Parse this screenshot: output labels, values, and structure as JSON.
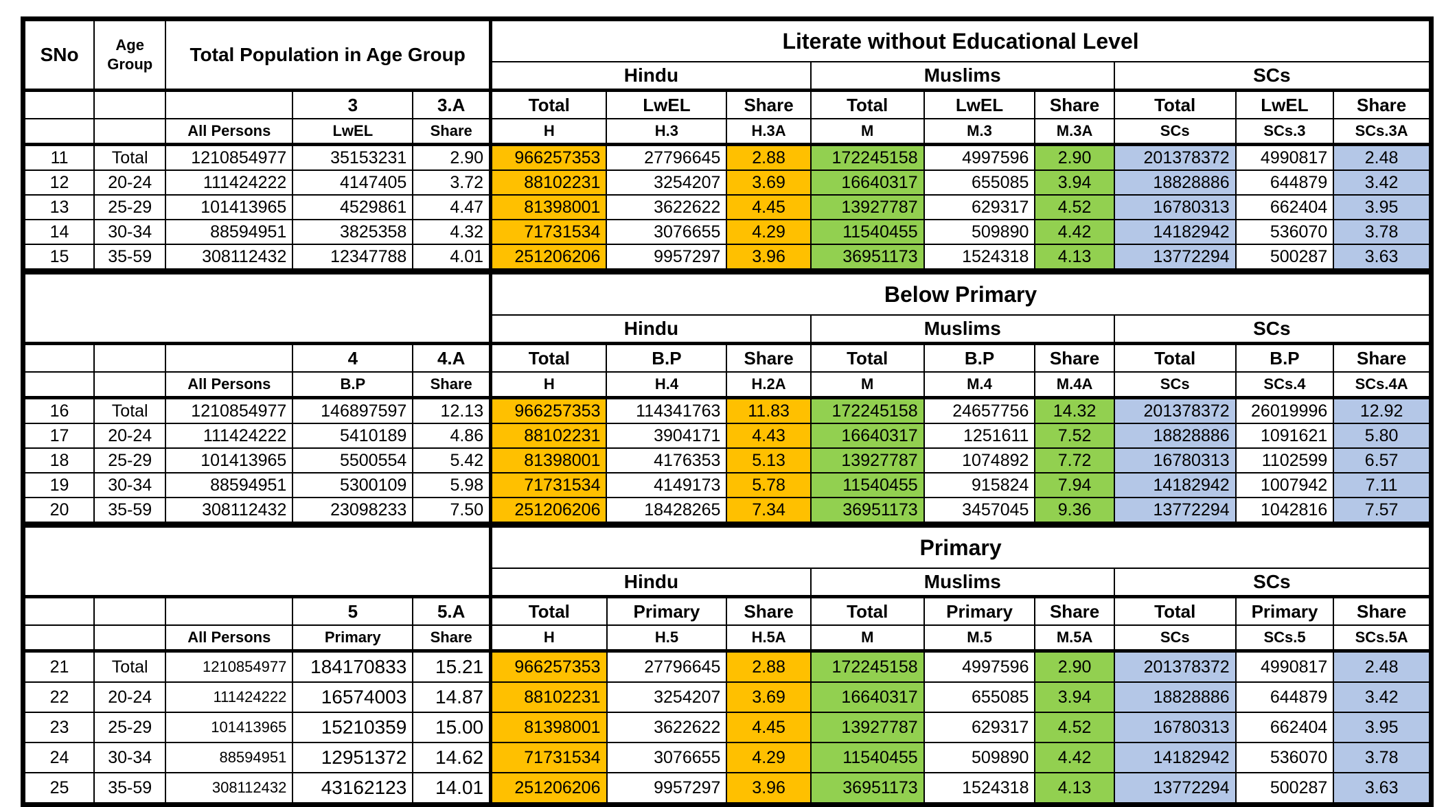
{
  "colors": {
    "hindu_highlight": "#FFC000",
    "muslim_highlight": "#92D050",
    "sc_highlight": "#B4C7E7"
  },
  "top_header": {
    "sno": "SNo",
    "age_group": "Age Group",
    "total_population": "Total Population in Age Group"
  },
  "group_names": {
    "hindu": "Hindu",
    "muslims": "Muslims",
    "scs": "SCs"
  },
  "sections": [
    {
      "title": "Literate without Educational Level",
      "left_num_header": [
        "3",
        "3.A"
      ],
      "left_sub_header": [
        "All Persons",
        "LwEL",
        "Share"
      ],
      "group_col_headers": {
        "hindu": [
          "Total",
          "LwEL",
          "Share"
        ],
        "muslims": [
          "Total",
          "LwEL",
          "Share"
        ],
        "scs": [
          "Total",
          "LwEL",
          "Share"
        ]
      },
      "group_sub_headers": {
        "hindu": [
          "H",
          "H.3",
          "H.3A"
        ],
        "muslims": [
          "M",
          "M.3",
          "M.3A"
        ],
        "scs": [
          "SCs",
          "SCs.3",
          "SCs.3A"
        ]
      },
      "rows": [
        [
          "11",
          "Total",
          "1210854977",
          "35153231",
          "2.90",
          "966257353",
          "27796645",
          "2.88",
          "172245158",
          "4997596",
          "2.90",
          "201378372",
          "4990817",
          "2.48"
        ],
        [
          "12",
          "20-24",
          "111424222",
          "4147405",
          "3.72",
          "88102231",
          "3254207",
          "3.69",
          "16640317",
          "655085",
          "3.94",
          "18828886",
          "644879",
          "3.42"
        ],
        [
          "13",
          "25-29",
          "101413965",
          "4529861",
          "4.47",
          "81398001",
          "3622622",
          "4.45",
          "13927787",
          "629317",
          "4.52",
          "16780313",
          "662404",
          "3.95"
        ],
        [
          "14",
          "30-34",
          "88594951",
          "3825358",
          "4.32",
          "71731534",
          "3076655",
          "4.29",
          "11540455",
          "509890",
          "4.42",
          "14182942",
          "536070",
          "3.78"
        ],
        [
          "15",
          "35-59",
          "308112432",
          "12347788",
          "4.01",
          "251206206",
          "9957297",
          "3.96",
          "36951173",
          "1524318",
          "4.13",
          "13772294",
          "500287",
          "3.63"
        ]
      ]
    },
    {
      "title": "Below Primary",
      "left_num_header": [
        "4",
        "4.A"
      ],
      "left_sub_header": [
        "All Persons",
        "B.P",
        "Share"
      ],
      "group_col_headers": {
        "hindu": [
          "Total",
          "B.P",
          "Share"
        ],
        "muslims": [
          "Total",
          "B.P",
          "Share"
        ],
        "scs": [
          "Total",
          "B.P",
          "Share"
        ]
      },
      "group_sub_headers": {
        "hindu": [
          "H",
          "H.4",
          "H.2A"
        ],
        "muslims": [
          "M",
          "M.4",
          "M.4A"
        ],
        "scs": [
          "SCs",
          "SCs.4",
          "SCs.4A"
        ]
      },
      "rows": [
        [
          "16",
          "Total",
          "1210854977",
          "146897597",
          "12.13",
          "966257353",
          "114341763",
          "11.83",
          "172245158",
          "24657756",
          "14.32",
          "201378372",
          "26019996",
          "12.92"
        ],
        [
          "17",
          "20-24",
          "111424222",
          "5410189",
          "4.86",
          "88102231",
          "3904171",
          "4.43",
          "16640317",
          "1251611",
          "7.52",
          "18828886",
          "1091621",
          "5.80"
        ],
        [
          "18",
          "25-29",
          "101413965",
          "5500554",
          "5.42",
          "81398001",
          "4176353",
          "5.13",
          "13927787",
          "1074892",
          "7.72",
          "16780313",
          "1102599",
          "6.57"
        ],
        [
          "19",
          "30-34",
          "88594951",
          "5300109",
          "5.98",
          "71731534",
          "4149173",
          "5.78",
          "11540455",
          "915824",
          "7.94",
          "14182942",
          "1007942",
          "7.11"
        ],
        [
          "20",
          "35-59",
          "308112432",
          "23098233",
          "7.50",
          "251206206",
          "18428265",
          "7.34",
          "36951173",
          "3457045",
          "9.36",
          "13772294",
          "1042816",
          "7.57"
        ]
      ]
    },
    {
      "title": "Primary",
      "left_num_header": [
        "5",
        "5.A"
      ],
      "left_sub_header": [
        "All Persons",
        "Primary",
        "Share"
      ],
      "group_col_headers": {
        "hindu": [
          "Total",
          "Primary",
          "Share"
        ],
        "muslims": [
          "Total",
          "Primary",
          "Share"
        ],
        "scs": [
          "Total",
          "Primary",
          "Share"
        ]
      },
      "group_sub_headers": {
        "hindu": [
          "H",
          "H.5",
          "H.5A"
        ],
        "muslims": [
          "M",
          "M.5",
          "M.5A"
        ],
        "scs": [
          "SCs",
          "SCs.5",
          "SCs.5A"
        ]
      },
      "rows": [
        [
          "21",
          "Total",
          "1210854977",
          "184170833",
          "15.21",
          "966257353",
          "27796645",
          "2.88",
          "172245158",
          "4997596",
          "2.90",
          "201378372",
          "4990817",
          "2.48"
        ],
        [
          "22",
          "20-24",
          "111424222",
          "16574003",
          "14.87",
          "88102231",
          "3254207",
          "3.69",
          "16640317",
          "655085",
          "3.94",
          "18828886",
          "644879",
          "3.42"
        ],
        [
          "23",
          "25-29",
          "101413965",
          "15210359",
          "15.00",
          "81398001",
          "3622622",
          "4.45",
          "13927787",
          "629317",
          "4.52",
          "16780313",
          "662404",
          "3.95"
        ],
        [
          "24",
          "30-34",
          "88594951",
          "12951372",
          "14.62",
          "71731534",
          "3076655",
          "4.29",
          "11540455",
          "509890",
          "4.42",
          "14182942",
          "536070",
          "3.78"
        ],
        [
          "25",
          "35-59",
          "308112432",
          "43162123",
          "14.01",
          "251206206",
          "9957297",
          "3.96",
          "36951173",
          "1524318",
          "4.13",
          "13772294",
          "500287",
          "3.63"
        ]
      ]
    }
  ]
}
